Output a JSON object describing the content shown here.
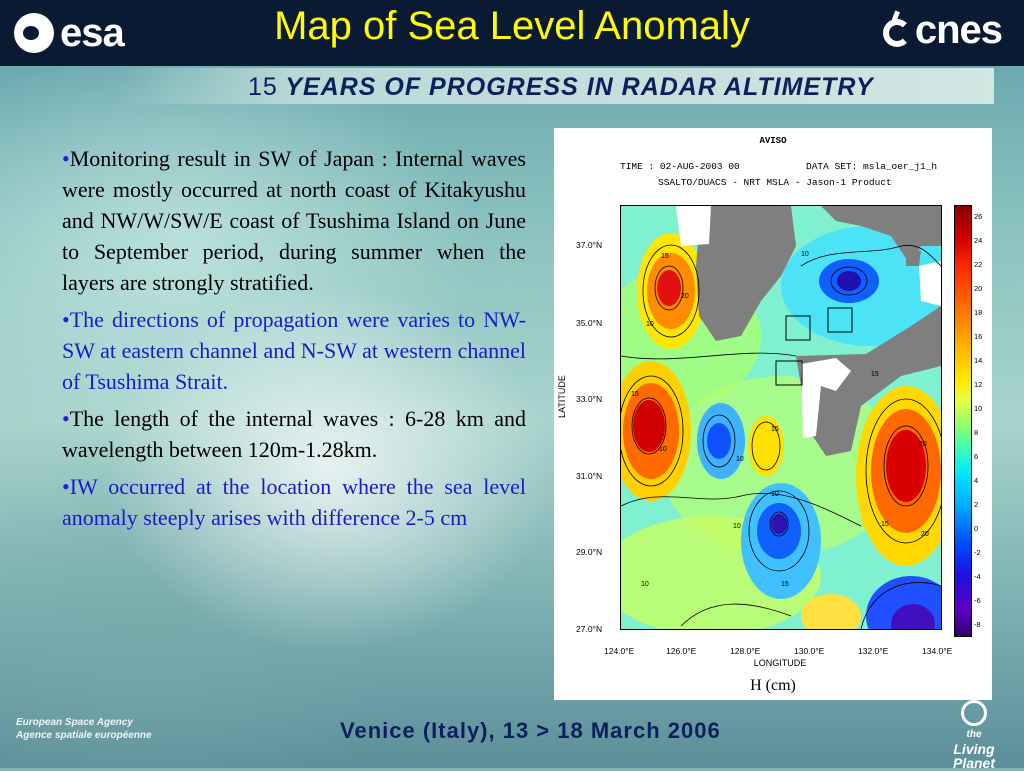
{
  "header": {
    "esa_logo_text": "esa",
    "title": "Map of Sea Level Anomaly",
    "cnes_logo_text": "cnes"
  },
  "banner": {
    "number": "15",
    "text": "YEARS OF PROGRESS IN RADAR ALTIMETRY"
  },
  "bullets": [
    {
      "marker": "•",
      "text": "Monitoring result in SW of Japan : Internal waves were mostly occurred at north coast of Kitakyushu and NW/W/SW/E coast of Tsushima Island on June to September period, during summer when the layers are strongly stratified."
    },
    {
      "marker": "•",
      "text": "The directions of propagation were varies to NW-SW at eastern channel and N-SW at western channel of Tsushima Strait."
    },
    {
      "marker": "•",
      "text": "The length of the internal waves : 6-28 km and wavelength between 120m-1.28km."
    },
    {
      "marker": "•",
      "text": "IW occurred at the location where the sea level anomaly steeply arises with difference 2-5 cm"
    }
  ],
  "figure": {
    "title": "AVISO",
    "time_line": "TIME : 02-AUG-2003 00",
    "dataset_line": "DATA SET: msla_oer_j1_h",
    "product_line": "SSALTO/DUACS - NRT MSLA - Jason-1 Product",
    "y_axis_name": "LATITUDE",
    "x_axis_name": "LONGITUDE",
    "unit_label": "H (cm)",
    "lat_ticks": [
      "37.0°N",
      "35.0°N",
      "33.0°N",
      "31.0°N",
      "29.0°N",
      "27.0°N"
    ],
    "lon_ticks": [
      "124.0°E",
      "126.0°E",
      "128.0°E",
      "130.0°E",
      "132.0°E",
      "134.0°E"
    ],
    "colorbar_ticks": [
      "26",
      "24",
      "22",
      "20",
      "18",
      "16",
      "14",
      "12",
      "10",
      "8",
      "6",
      "4",
      "2",
      "0",
      "-2",
      "-4",
      "-6",
      "-8"
    ],
    "contour_labels": [
      "15",
      "20",
      "10",
      "15",
      "10",
      "10",
      "10",
      "15",
      "20",
      "15",
      "10",
      "15",
      "10",
      "15",
      "20",
      "10"
    ]
  },
  "footer": {
    "agency_line1": "European Space Agency",
    "agency_line2": "Agence spatiale européenne",
    "event": "Venice (Italy), 13 > 18 March 2006",
    "living_planet_small": "the",
    "living_planet_big": "Living Planet"
  },
  "colors": {
    "title": "#ffff00",
    "header_bg": "#0a1a33",
    "banner_text": "#0d1f5c",
    "bullet_blue": "#1a1acc"
  }
}
